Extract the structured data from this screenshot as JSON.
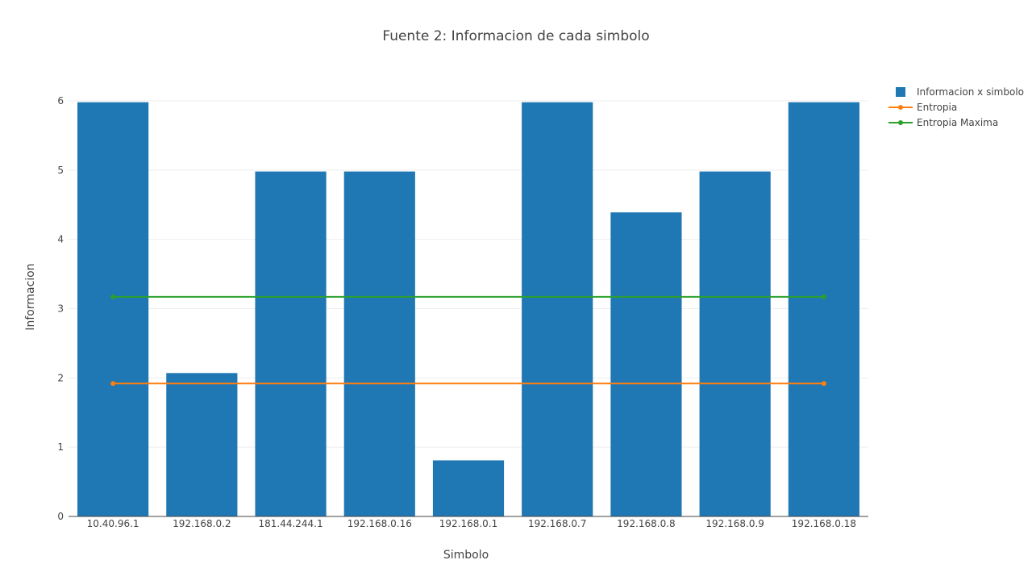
{
  "chart_data": {
    "type": "bar",
    "title": "Fuente 2: Informacion de cada simbolo",
    "xlabel": "Simbolo",
    "ylabel": "Informacion",
    "categories": [
      "10.40.96.1",
      "192.168.0.2",
      "181.44.244.1",
      "192.168.0.16",
      "192.168.0.1",
      "192.168.0.7",
      "192.168.0.8",
      "192.168.0.9",
      "192.168.0.18"
    ],
    "ylim": [
      0,
      6
    ],
    "yticks": [
      "0",
      "1",
      "2",
      "3",
      "4",
      "5",
      "6"
    ],
    "grid": true,
    "legend_position": "top-right",
    "series": [
      {
        "name": "Informacion x simbolo",
        "type": "bar",
        "color": "#1f77b4",
        "values": [
          5.98,
          2.07,
          4.98,
          4.98,
          0.81,
          5.98,
          4.39,
          4.98,
          5.98
        ]
      },
      {
        "name": "Entropia",
        "type": "line",
        "color": "#ff7f0e",
        "x": [
          "10.40.96.1",
          "192.168.0.18"
        ],
        "values": [
          1.92,
          1.92
        ]
      },
      {
        "name": "Entropia Maxima",
        "type": "line",
        "color": "#2ca02c",
        "x": [
          "10.40.96.1",
          "192.168.0.18"
        ],
        "values": [
          3.17,
          3.17
        ]
      }
    ]
  }
}
